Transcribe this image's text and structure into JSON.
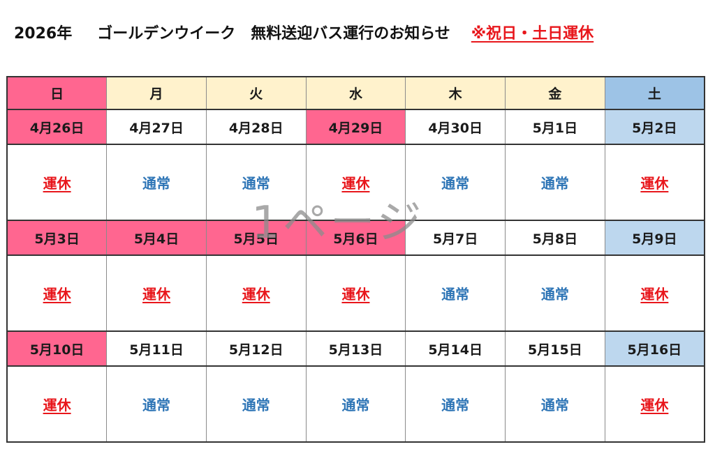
{
  "title": {
    "year": "2026年",
    "main": "ゴールデンウイーク　無料送迎バス運行のお知らせ",
    "note": "※祝日・土日運休"
  },
  "watermark": "1ページ",
  "colors": {
    "sunday_holiday": "#ff6690",
    "weekday_header": "#fff2cc",
    "saturday_header": "#9dc3e6",
    "saturday_cell": "#bdd7ee",
    "closed_text": "#e8161b",
    "normal_text": "#2e75b6"
  },
  "weekdays": [
    "日",
    "月",
    "火",
    "水",
    "木",
    "金",
    "土"
  ],
  "weeks": [
    {
      "dates": [
        "4月26日",
        "4月27日",
        "4月28日",
        "4月29日",
        "4月30日",
        "5月1日",
        "5月2日"
      ],
      "date_types": [
        "sun",
        "none",
        "none",
        "hol",
        "none",
        "none",
        "sat"
      ],
      "status": [
        "運休",
        "通常",
        "通常",
        "運休",
        "通常",
        "通常",
        "運休"
      ]
    },
    {
      "dates": [
        "5月3日",
        "5月4日",
        "5月5日",
        "5月6日",
        "5月7日",
        "5月8日",
        "5月9日"
      ],
      "date_types": [
        "sun",
        "hol",
        "hol",
        "hol",
        "none",
        "none",
        "sat"
      ],
      "status": [
        "運休",
        "運休",
        "運休",
        "運休",
        "通常",
        "通常",
        "運休"
      ]
    },
    {
      "dates": [
        "5月10日",
        "5月11日",
        "5月12日",
        "5月13日",
        "5月14日",
        "5月15日",
        "5月16日"
      ],
      "date_types": [
        "sun",
        "none",
        "none",
        "none",
        "none",
        "none",
        "sat"
      ],
      "status": [
        "運休",
        "通常",
        "通常",
        "通常",
        "通常",
        "通常",
        "運休"
      ]
    }
  ]
}
